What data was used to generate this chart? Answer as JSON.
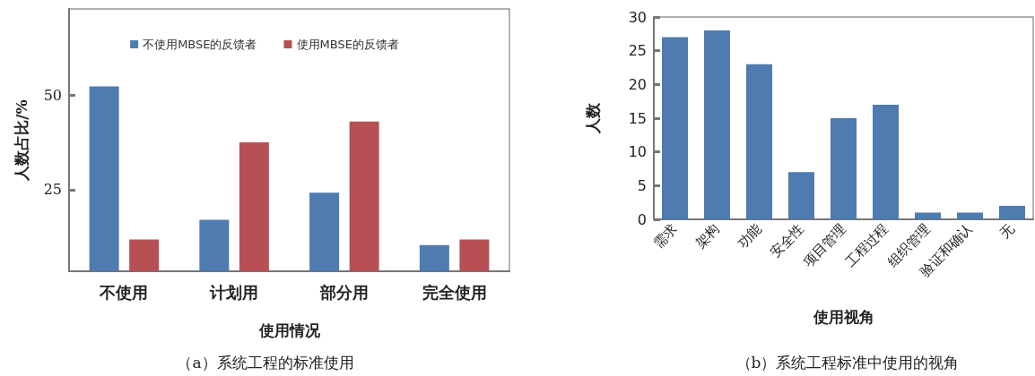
{
  "chart_data": [
    {
      "type": "bar",
      "title": "（a）系统工程的标准使用",
      "xlabel": "使用情况",
      "ylabel": "人数占比/%",
      "categories": [
        "不使用",
        "计划用",
        "部分用",
        "完全使用"
      ],
      "series": [
        {
          "name": "不使用MBSE的反馈者",
          "color": "#4e7bb0",
          "values": [
            52.3,
            17.1,
            24.2,
            10.4
          ]
        },
        {
          "name": "使用MBSE的反馈者",
          "color": "#b65055",
          "values": [
            11.9,
            37.5,
            43.0,
            11.9
          ]
        }
      ],
      "ylim": [
        3.5,
        72.7
      ],
      "yticks": [
        25,
        50
      ],
      "grid": false,
      "legend": "top"
    },
    {
      "type": "bar",
      "title": "（b）系统工程标准中使用的视角",
      "xlabel": "使用视角",
      "ylabel": "人数",
      "categories": [
        "需求",
        "架构",
        "功能",
        "安全性",
        "项目管理",
        "工程过程",
        "组织管理",
        "验证和确认",
        "无"
      ],
      "series": [
        {
          "color": "#4e7bb0",
          "values": [
            27,
            28,
            23,
            7,
            15,
            17,
            1,
            1,
            2
          ]
        }
      ],
      "ylim": [
        0,
        30
      ],
      "yticks": [
        0,
        5,
        10,
        15,
        20,
        25,
        30
      ],
      "grid": false
    }
  ]
}
